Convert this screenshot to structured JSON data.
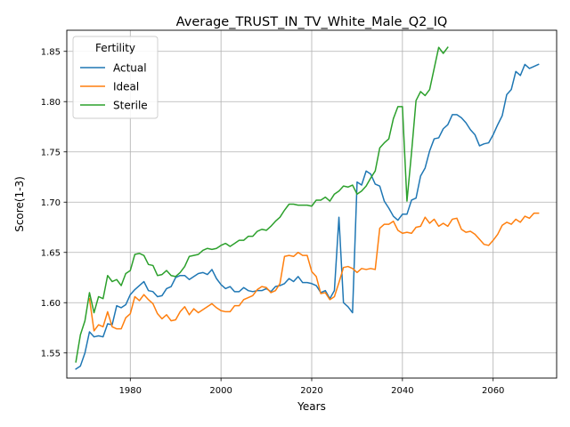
{
  "chart_data": {
    "type": "line",
    "title": "Average_TRUST_IN_TV_White_Male_Q2_IQ",
    "xlabel": "Years",
    "ylabel": "Score(1-3)",
    "xlim": [
      1966,
      2074
    ],
    "ylim": [
      1.525,
      1.871
    ],
    "xticks": [
      1980,
      2000,
      2020,
      2040,
      2060
    ],
    "yticks": [
      1.55,
      1.6,
      1.65,
      1.7,
      1.75,
      1.8,
      1.85
    ],
    "grid": true,
    "legend": {
      "title": "Fertility",
      "placement": "upper left"
    },
    "series": [
      {
        "name": "Actual",
        "color": "#1f77b4",
        "x": [
          1968,
          1969,
          1970,
          1971,
          1972,
          1973,
          1974,
          1975,
          1976,
          1977,
          1978,
          1979,
          1980,
          1981,
          1982,
          1983,
          1984,
          1985,
          1986,
          1987,
          1988,
          1989,
          1990,
          1991,
          1992,
          1993,
          1994,
          1995,
          1996,
          1997,
          1998,
          1999,
          2000,
          2001,
          2002,
          2003,
          2004,
          2005,
          2006,
          2007,
          2008,
          2009,
          2010,
          2011,
          2012,
          2013,
          2014,
          2015,
          2016,
          2017,
          2018,
          2019,
          2020,
          2021,
          2022,
          2023,
          2024,
          2025,
          2026,
          2027,
          2028,
          2029,
          2030,
          2031,
          2032,
          2033,
          2034,
          2035,
          2036,
          2037,
          2038,
          2039,
          2040,
          2041,
          2042,
          2043,
          2044,
          2045,
          2046,
          2047,
          2048,
          2049,
          2050,
          2051,
          2052,
          2053,
          2054,
          2055,
          2056,
          2057,
          2058,
          2059,
          2060,
          2061,
          2062,
          2063,
          2064,
          2065,
          2066,
          2067,
          2068,
          2069,
          2070
        ],
        "values": [
          1.534,
          1.537,
          1.55,
          1.571,
          1.566,
          1.567,
          1.566,
          1.579,
          1.578,
          1.597,
          1.595,
          1.598,
          1.608,
          1.613,
          1.617,
          1.621,
          1.612,
          1.611,
          1.606,
          1.607,
          1.614,
          1.616,
          1.625,
          1.627,
          1.627,
          1.623,
          1.626,
          1.629,
          1.63,
          1.628,
          1.633,
          1.624,
          1.618,
          1.614,
          1.616,
          1.611,
          1.611,
          1.615,
          1.612,
          1.611,
          1.612,
          1.612,
          1.614,
          1.611,
          1.616,
          1.617,
          1.619,
          1.624,
          1.621,
          1.626,
          1.62,
          1.62,
          1.619,
          1.617,
          1.61,
          1.612,
          1.604,
          1.612,
          1.685,
          1.6,
          1.596,
          1.59,
          1.72,
          1.717,
          1.731,
          1.728,
          1.718,
          1.716,
          1.701,
          1.694,
          1.686,
          1.682,
          1.688,
          1.688,
          1.702,
          1.704,
          1.726,
          1.734,
          1.751,
          1.763,
          1.764,
          1.773,
          1.777,
          1.787,
          1.787,
          1.784,
          1.779,
          1.772,
          1.767,
          1.756,
          1.758,
          1.759,
          1.767,
          1.777,
          1.786,
          1.807,
          1.812,
          1.83,
          1.826,
          1.837,
          1.833,
          1.835,
          1.837
        ]
      },
      {
        "name": "Ideal",
        "color": "#ff7f0e",
        "x": [
          1971,
          1972,
          1973,
          1974,
          1975,
          1976,
          1977,
          1978,
          1979,
          1980,
          1981,
          1982,
          1983,
          1984,
          1985,
          1986,
          1987,
          1988,
          1989,
          1990,
          1991,
          1992,
          1993,
          1994,
          1995,
          1996,
          1997,
          1998,
          1999,
          2000,
          2001,
          2002,
          2003,
          2004,
          2005,
          2006,
          2007,
          2008,
          2009,
          2010,
          2011,
          2012,
          2013,
          2014,
          2015,
          2016,
          2017,
          2018,
          2019,
          2020,
          2021,
          2022,
          2023,
          2024,
          2025,
          2026,
          2027,
          2028,
          2029,
          2030,
          2031,
          2032,
          2033,
          2034,
          2035,
          2036,
          2037,
          2038,
          2039,
          2040,
          2041,
          2042,
          2043,
          2044,
          2045,
          2046,
          2047,
          2048,
          2049,
          2050,
          2051,
          2052,
          2053,
          2054,
          2055,
          2056,
          2057,
          2058,
          2059,
          2060,
          2061,
          2062,
          2063,
          2064,
          2065,
          2066,
          2067,
          2068,
          2069,
          2070
        ],
        "values": [
          1.604,
          1.572,
          1.578,
          1.576,
          1.591,
          1.576,
          1.574,
          1.574,
          1.585,
          1.589,
          1.606,
          1.602,
          1.608,
          1.603,
          1.599,
          1.589,
          1.584,
          1.588,
          1.582,
          1.583,
          1.591,
          1.596,
          1.588,
          1.594,
          1.59,
          1.593,
          1.596,
          1.599,
          1.595,
          1.592,
          1.591,
          1.591,
          1.597,
          1.597,
          1.603,
          1.605,
          1.607,
          1.613,
          1.616,
          1.615,
          1.61,
          1.612,
          1.619,
          1.646,
          1.647,
          1.646,
          1.65,
          1.647,
          1.647,
          1.631,
          1.626,
          1.609,
          1.61,
          1.603,
          1.606,
          1.62,
          1.635,
          1.636,
          1.634,
          1.63,
          1.634,
          1.633,
          1.634,
          1.633,
          1.674,
          1.678,
          1.678,
          1.681,
          1.672,
          1.669,
          1.67,
          1.669,
          1.675,
          1.676,
          1.685,
          1.679,
          1.683,
          1.676,
          1.679,
          1.676,
          1.683,
          1.684,
          1.673,
          1.67,
          1.671,
          1.668,
          1.663,
          1.658,
          1.657,
          1.662,
          1.668,
          1.677,
          1.68,
          1.678,
          1.683,
          1.68,
          1.686,
          1.684,
          1.689,
          1.689
        ]
      },
      {
        "name": "Sterile",
        "color": "#2ca02c",
        "x": [
          1968,
          1969,
          1970,
          1971,
          1972,
          1973,
          1974,
          1975,
          1976,
          1977,
          1978,
          1979,
          1980,
          1981,
          1982,
          1983,
          1984,
          1985,
          1986,
          1987,
          1988,
          1989,
          1990,
          1991,
          1992,
          1993,
          1994,
          1995,
          1996,
          1997,
          1998,
          1999,
          2000,
          2001,
          2002,
          2003,
          2004,
          2005,
          2006,
          2007,
          2008,
          2009,
          2010,
          2011,
          2012,
          2013,
          2014,
          2015,
          2016,
          2017,
          2018,
          2019,
          2020,
          2021,
          2022,
          2023,
          2024,
          2025,
          2026,
          2027,
          2028,
          2029,
          2030,
          2031,
          2032,
          2033,
          2034,
          2035,
          2036,
          2037,
          2038,
          2039,
          2040,
          2041,
          2042,
          2043,
          2044,
          2045,
          2046,
          2047,
          2048,
          2049,
          2050
        ],
        "values": [
          1.541,
          1.568,
          1.582,
          1.61,
          1.59,
          1.606,
          1.604,
          1.627,
          1.621,
          1.623,
          1.617,
          1.629,
          1.632,
          1.648,
          1.649,
          1.647,
          1.638,
          1.637,
          1.627,
          1.628,
          1.632,
          1.627,
          1.626,
          1.63,
          1.636,
          1.646,
          1.647,
          1.648,
          1.652,
          1.654,
          1.653,
          1.654,
          1.657,
          1.659,
          1.656,
          1.659,
          1.662,
          1.662,
          1.666,
          1.666,
          1.671,
          1.673,
          1.672,
          1.676,
          1.681,
          1.685,
          1.692,
          1.698,
          1.698,
          1.697,
          1.697,
          1.697,
          1.696,
          1.702,
          1.702,
          1.705,
          1.701,
          1.708,
          1.711,
          1.716,
          1.715,
          1.717,
          1.708,
          1.711,
          1.716,
          1.724,
          1.731,
          1.754,
          1.759,
          1.763,
          1.783,
          1.795,
          1.795,
          1.701,
          1.749,
          1.801,
          1.81,
          1.806,
          1.812,
          1.833,
          1.854,
          1.848,
          1.854
        ]
      }
    ]
  }
}
